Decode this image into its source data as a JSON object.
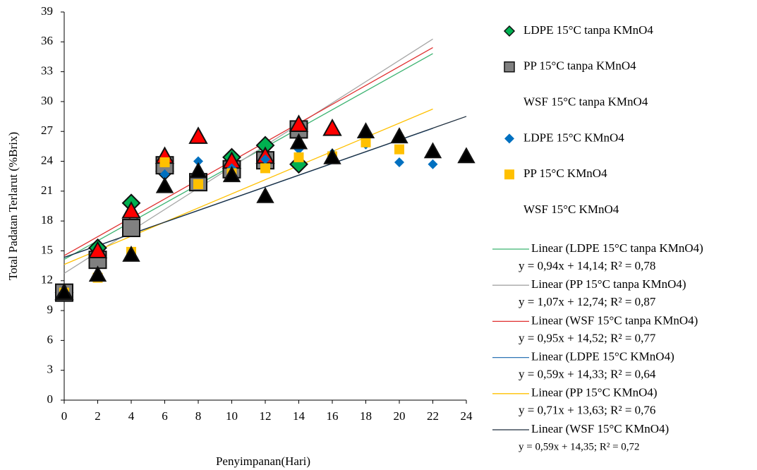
{
  "chart_data": {
    "type": "scatter",
    "xlabel": "Penyimpanan(Hari)",
    "ylabel": "Total Padatan Terlarut (%Brix)",
    "xlim": [
      0,
      24
    ],
    "xticks": [
      0,
      2,
      4,
      6,
      8,
      10,
      12,
      14,
      16,
      18,
      20,
      22,
      24
    ],
    "ylim": [
      0,
      39
    ],
    "yticks": [
      0,
      3,
      6,
      9,
      12,
      15,
      18,
      21,
      24,
      27,
      30,
      33,
      36,
      39
    ],
    "series": [
      {
        "name": "LDPE 15°C tanpa KMnO4",
        "color": "#00b050",
        "marker": "diamond",
        "x": [
          0,
          2,
          4,
          6,
          8,
          10,
          12,
          14
        ],
        "values": [
          10.8,
          15.3,
          19.8,
          23.0,
          22.0,
          24.4,
          25.6,
          23.7
        ],
        "trendline": {
          "name": "Linear (LDPE 15°C tanpa KMnO4)",
          "equation": "y = 0,94x + 14,14; R² = 0,78",
          "slope": 0.94,
          "intercept": 14.14,
          "color": "#3cb371",
          "x_range": [
            0,
            22
          ]
        }
      },
      {
        "name": "PP 15°C tanpa KMnO4",
        "color": "#808080",
        "marker": "square",
        "x": [
          0,
          2,
          4,
          6,
          8,
          10,
          12,
          14
        ],
        "values": [
          10.8,
          14.1,
          17.3,
          23.6,
          21.9,
          23.2,
          24.1,
          27.2
        ],
        "trendline": {
          "name": "Linear (PP 15°C tanpa KMnO4)",
          "equation": "y = 1,07x + 12,74;  R² = 0,87",
          "slope": 1.07,
          "intercept": 12.74,
          "color": "#a6a6a6",
          "x_range": [
            0,
            22
          ]
        }
      },
      {
        "name": "WSF 15°C tanpa KMnO4",
        "color": "#ff0000",
        "marker": "triangle",
        "x": [
          0,
          2,
          4,
          6,
          8,
          10,
          12,
          14,
          16
        ],
        "values": [
          10.8,
          15.0,
          19.0,
          24.5,
          26.5,
          24.0,
          24.5,
          27.7,
          27.3
        ],
        "trendline": {
          "name": "Linear (WSF 15°C tanpa KMnO4)",
          "equation": "y = 0,95x + 14,52; R² = 0,77",
          "slope": 0.95,
          "intercept": 14.52,
          "color": "#e03030",
          "x_range": [
            0,
            22
          ]
        }
      },
      {
        "name": "LDPE 15°C KMnO4",
        "color": "#0070c0",
        "marker": "diamond-small",
        "x": [
          0,
          2,
          4,
          6,
          8,
          10,
          12,
          14,
          16,
          18,
          20,
          22
        ],
        "values": [
          10.8,
          12.5,
          14.5,
          22.7,
          24.0,
          23.3,
          24.2,
          25.2,
          24.8,
          25.7,
          23.9,
          23.7
        ],
        "trendline": {
          "name": "Linear (LDPE 15°C KMnO4)",
          "equation": "y = 0,59x + 14,33; R² = 0,64",
          "slope": 0.59,
          "intercept": 14.33,
          "color": "#2e75b6",
          "x_range": [
            0,
            22
          ]
        }
      },
      {
        "name": "PP 15°C KMnO4",
        "color": "#ffc000",
        "marker": "square-small",
        "x": [
          0,
          2,
          4,
          6,
          8,
          10,
          12,
          14,
          16,
          18,
          20
        ],
        "values": [
          10.8,
          12.3,
          14.9,
          23.9,
          21.7,
          22.8,
          23.3,
          24.4,
          24.5,
          25.9,
          25.2
        ],
        "trendline": {
          "name": "Linear (PP 15°C KMnO4)",
          "equation": "y = 0,71x + 13,63;  R² = 0,76",
          "slope": 0.71,
          "intercept": 13.63,
          "color": "#ffc000",
          "x_range": [
            0,
            22
          ]
        }
      },
      {
        "name": "WSF 15°C KMnO4",
        "color": "#000000",
        "marker": "triangle-mid",
        "x": [
          0,
          2,
          4,
          6,
          8,
          10,
          12,
          14,
          16,
          18,
          20,
          22,
          24
        ],
        "values": [
          10.8,
          12.6,
          14.6,
          21.5,
          23.0,
          22.6,
          20.5,
          25.9,
          24.4,
          27.0,
          26.5,
          25.0,
          24.5
        ],
        "trendline": {
          "name": "Linear (WSF 15°C KMnO4)",
          "equation": "y = 0,59x + 14,35;  R² = 0,72",
          "slope": 0.59,
          "intercept": 14.35,
          "color": "#1f2f3f",
          "x_range": [
            0,
            24
          ]
        }
      }
    ]
  }
}
